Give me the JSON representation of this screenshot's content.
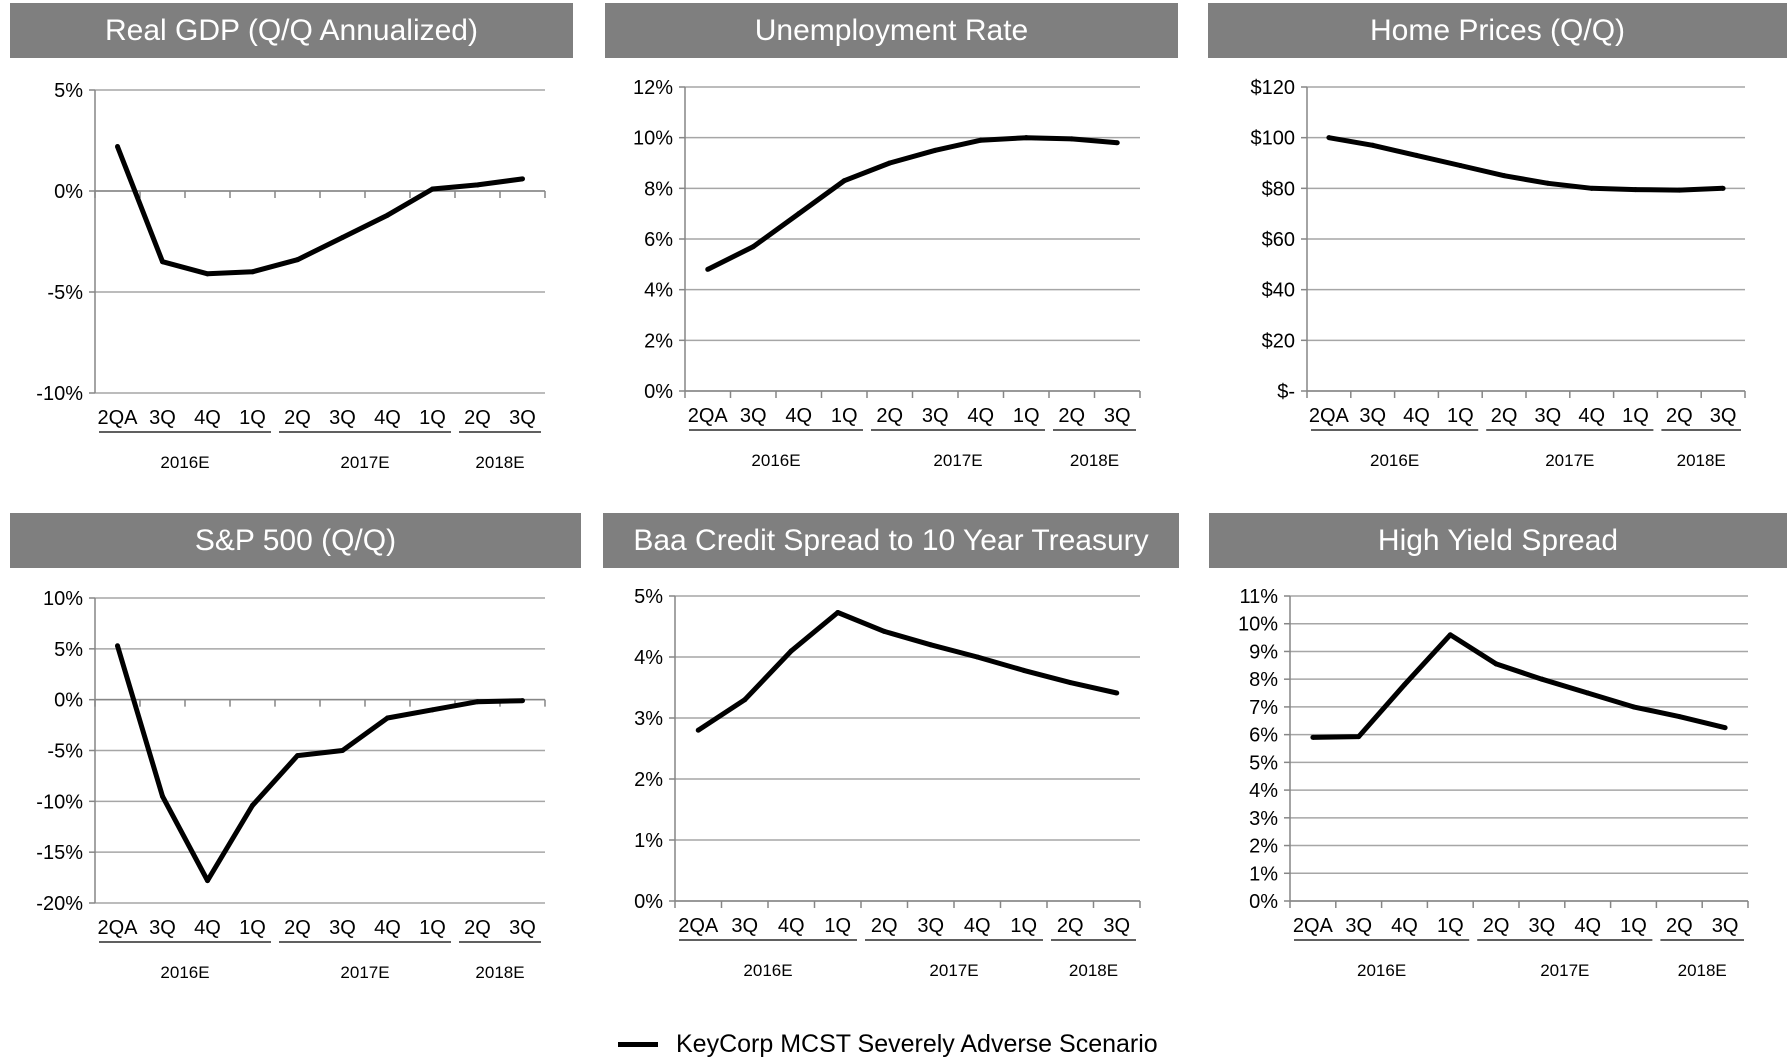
{
  "charts": [
    {
      "title": "Real GDP (Q/Q Annualized)"
    },
    {
      "title": "Unemployment Rate"
    },
    {
      "title": "Home Prices (Q/Q)"
    },
    {
      "title": "S&P 500 (Q/Q)"
    },
    {
      "title": "Baa Credit Spread to 10 Year Treasury"
    },
    {
      "title": "High Yield Spread"
    }
  ],
  "legend": {
    "label": "KeyCorp MCST Severely Adverse Scenario",
    "color": "#000000"
  },
  "chart_data": [
    {
      "type": "line",
      "title": "Real GDP (Q/Q Annualized)",
      "categories": [
        "2QA",
        "3Q",
        "4Q",
        "1Q",
        "2Q",
        "3Q",
        "4Q",
        "1Q",
        "2Q",
        "3Q"
      ],
      "groups": [
        {
          "label": "2016E",
          "span": 4
        },
        {
          "label": "2017E",
          "span": 4
        },
        {
          "label": "2018E",
          "span": 2
        }
      ],
      "series": [
        {
          "name": "KeyCorp MCST Severely Adverse Scenario",
          "values": [
            2.2,
            -3.5,
            -4.1,
            -4.0,
            -3.4,
            -2.3,
            -1.2,
            0.1,
            0.3,
            0.6
          ]
        }
      ],
      "ylim": [
        -10,
        5
      ],
      "yticks": [
        -10,
        -5,
        0,
        5
      ],
      "ytick_labels": [
        "-10%",
        "-5%",
        "0%",
        "5%"
      ],
      "grid": true,
      "xaxis_at_zero": true
    },
    {
      "type": "line",
      "title": "Unemployment Rate",
      "categories": [
        "2QA",
        "3Q",
        "4Q",
        "1Q",
        "2Q",
        "3Q",
        "4Q",
        "1Q",
        "2Q",
        "3Q"
      ],
      "groups": [
        {
          "label": "2016E",
          "span": 4
        },
        {
          "label": "2017E",
          "span": 4
        },
        {
          "label": "2018E",
          "span": 2
        }
      ],
      "series": [
        {
          "name": "KeyCorp MCST Severely Adverse Scenario",
          "values": [
            4.8,
            5.7,
            7.0,
            8.3,
            9.0,
            9.5,
            9.9,
            10.0,
            9.95,
            9.8
          ]
        }
      ],
      "ylim": [
        0,
        12
      ],
      "yticks": [
        0,
        2,
        4,
        6,
        8,
        10,
        12
      ],
      "ytick_labels": [
        "0%",
        "2%",
        "4%",
        "6%",
        "8%",
        "10%",
        "12%"
      ],
      "grid": true,
      "xaxis_at_zero": false
    },
    {
      "type": "line",
      "title": "Home Prices (Q/Q)",
      "categories": [
        "2QA",
        "3Q",
        "4Q",
        "1Q",
        "2Q",
        "3Q",
        "4Q",
        "1Q",
        "2Q",
        "3Q"
      ],
      "groups": [
        {
          "label": "2016E",
          "span": 4
        },
        {
          "label": "2017E",
          "span": 4
        },
        {
          "label": "2018E",
          "span": 2
        }
      ],
      "series": [
        {
          "name": "KeyCorp MCST Severely Adverse Scenario",
          "values": [
            100,
            97,
            93,
            89,
            85,
            82,
            80,
            79.5,
            79.3,
            80
          ]
        }
      ],
      "ylim": [
        0,
        120
      ],
      "yticks": [
        0,
        20,
        40,
        60,
        80,
        100,
        120
      ],
      "ytick_labels": [
        "$-",
        "$20",
        "$40",
        "$60",
        "$80",
        "$100",
        "$120"
      ],
      "grid": true,
      "xaxis_at_zero": false
    },
    {
      "type": "line",
      "title": "S&P 500 (Q/Q)",
      "categories": [
        "2QA",
        "3Q",
        "4Q",
        "1Q",
        "2Q",
        "3Q",
        "4Q",
        "1Q",
        "2Q",
        "3Q"
      ],
      "groups": [
        {
          "label": "2016E",
          "span": 4
        },
        {
          "label": "2017E",
          "span": 4
        },
        {
          "label": "2018E",
          "span": 2
        }
      ],
      "series": [
        {
          "name": "KeyCorp MCST Severely Adverse Scenario",
          "values": [
            5.3,
            -9.5,
            -17.8,
            -10.4,
            -5.5,
            -5.0,
            -1.8,
            -1.0,
            -0.2,
            -0.1
          ]
        }
      ],
      "ylim": [
        -20,
        10
      ],
      "yticks": [
        -20,
        -15,
        -10,
        -5,
        0,
        5,
        10
      ],
      "ytick_labels": [
        "-20%",
        "-15%",
        "-10%",
        "-5%",
        "0%",
        "5%",
        "10%"
      ],
      "grid": true,
      "xaxis_at_zero": true
    },
    {
      "type": "line",
      "title": "Baa Credit Spread to 10 Year Treasury",
      "categories": [
        "2QA",
        "3Q",
        "4Q",
        "1Q",
        "2Q",
        "3Q",
        "4Q",
        "1Q",
        "2Q",
        "3Q"
      ],
      "groups": [
        {
          "label": "2016E",
          "span": 4
        },
        {
          "label": "2017E",
          "span": 4
        },
        {
          "label": "2018E",
          "span": 2
        }
      ],
      "series": [
        {
          "name": "KeyCorp MCST Severely Adverse Scenario",
          "values": [
            2.8,
            3.3,
            4.1,
            4.73,
            4.42,
            4.2,
            4.0,
            3.78,
            3.58,
            3.41
          ]
        }
      ],
      "ylim": [
        0,
        5
      ],
      "yticks": [
        0,
        1,
        2,
        3,
        4,
        5
      ],
      "ytick_labels": [
        "0%",
        "1%",
        "2%",
        "3%",
        "4%",
        "5%"
      ],
      "grid": true,
      "xaxis_at_zero": false
    },
    {
      "type": "line",
      "title": "High Yield Spread",
      "categories": [
        "2QA",
        "3Q",
        "4Q",
        "1Q",
        "2Q",
        "3Q",
        "4Q",
        "1Q",
        "2Q",
        "3Q"
      ],
      "groups": [
        {
          "label": "2016E",
          "span": 4
        },
        {
          "label": "2017E",
          "span": 4
        },
        {
          "label": "2018E",
          "span": 2
        }
      ],
      "series": [
        {
          "name": "KeyCorp MCST Severely Adverse Scenario",
          "values": [
            5.9,
            5.93,
            7.8,
            9.6,
            8.55,
            8.0,
            7.5,
            7.0,
            6.65,
            6.25
          ]
        }
      ],
      "ylim": [
        0,
        11
      ],
      "yticks": [
        0,
        1,
        2,
        3,
        4,
        5,
        6,
        7,
        8,
        9,
        10,
        11
      ],
      "ytick_labels": [
        "0%",
        "1%",
        "2%",
        "3%",
        "4%",
        "5%",
        "6%",
        "7%",
        "8%",
        "9%",
        "10%",
        "11%"
      ],
      "grid": true,
      "xaxis_at_zero": false
    }
  ]
}
